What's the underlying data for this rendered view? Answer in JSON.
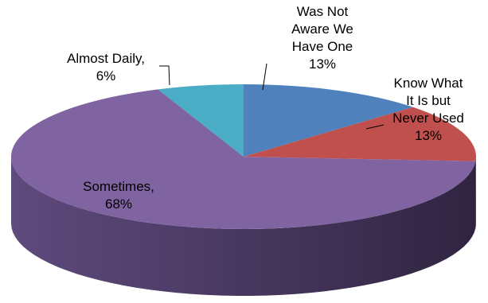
{
  "chart_data": {
    "type": "pie",
    "style": "3d",
    "title": "",
    "categories": [
      "Was Not Aware We Have One",
      "Know What It Is but Never Used",
      "Sometimes",
      "Almost Daily"
    ],
    "values": [
      13,
      13,
      68,
      6
    ],
    "unit": "%",
    "colors": [
      "#4f81bd",
      "#c0504d",
      "#8064a2",
      "#4bacc6"
    ],
    "data_labels": [
      {
        "lines": [
          "Was Not",
          "Aware We",
          "Have One",
          "13%"
        ]
      },
      {
        "lines": [
          "Know What",
          "It Is but",
          "Never Used",
          "13%"
        ]
      },
      {
        "lines": [
          "Sometimes,",
          "68%"
        ]
      },
      {
        "lines": [
          "Almost Daily,",
          "6%"
        ]
      }
    ],
    "legend": "none"
  }
}
